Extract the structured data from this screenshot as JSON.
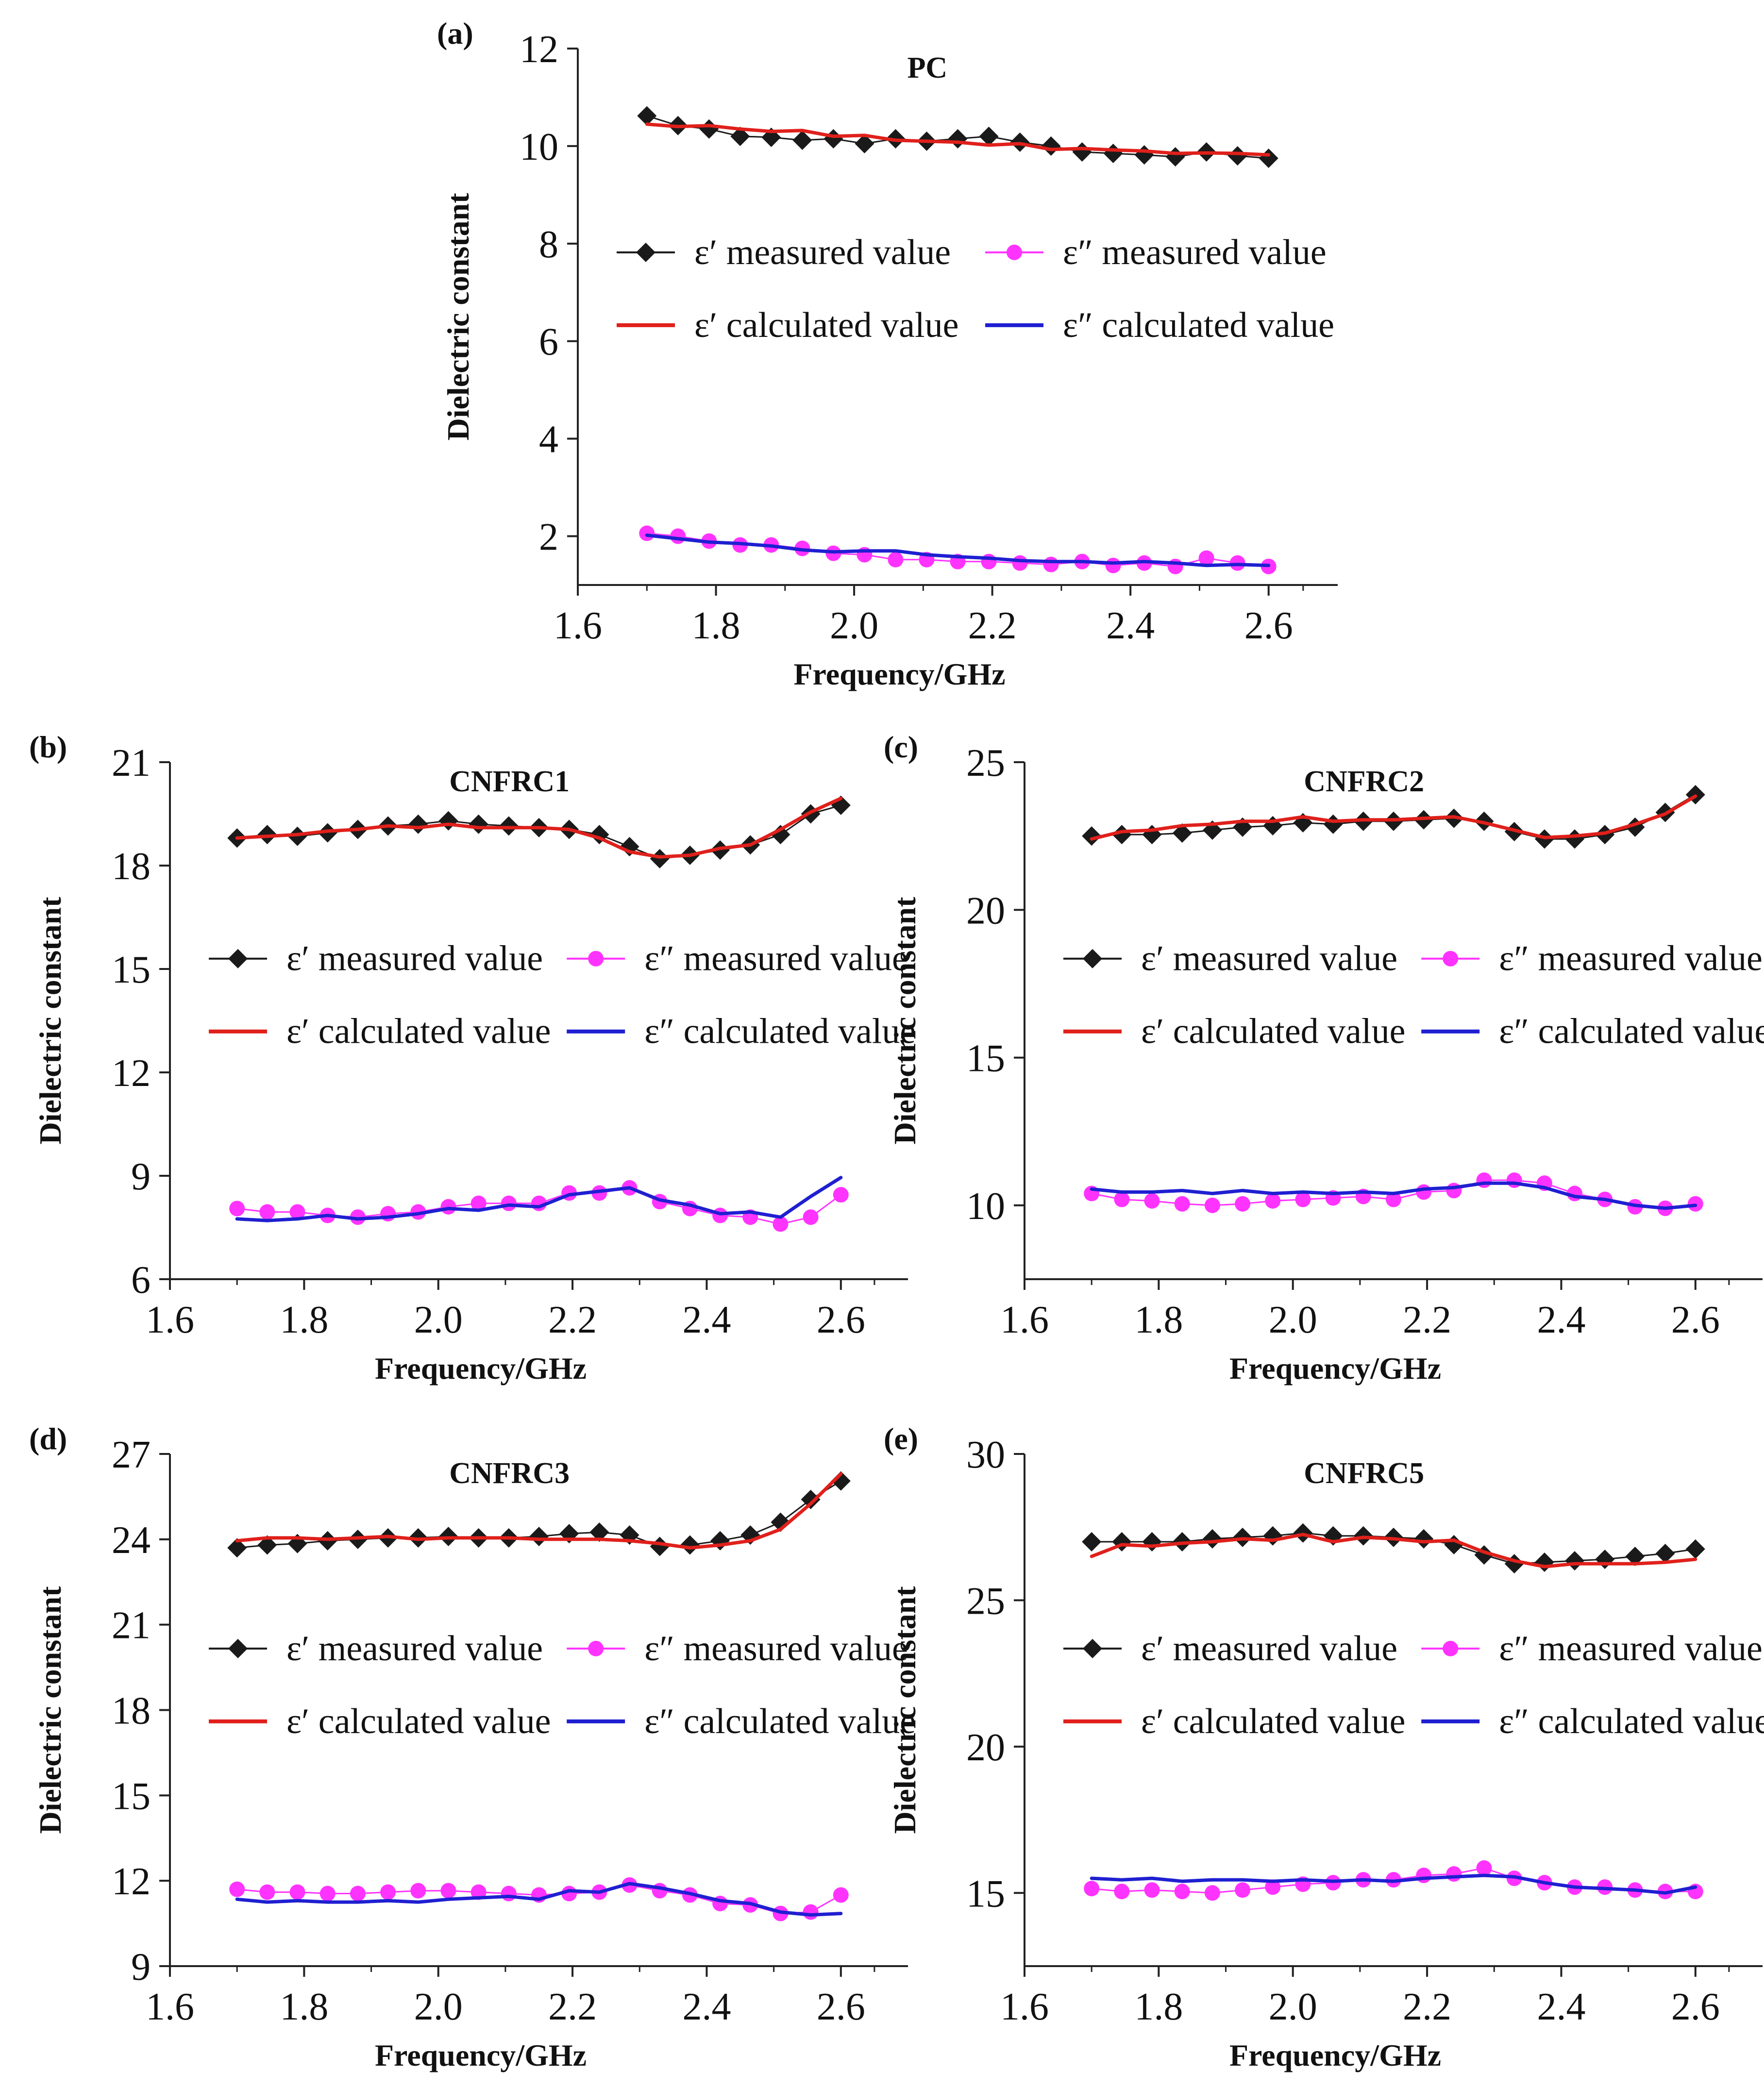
{
  "figure": {
    "series_styles": [
      {
        "key": "eps1_meas",
        "color": "#1a1a1a",
        "marker": "diamond"
      },
      {
        "key": "eps1_calc",
        "color": "#e0201b",
        "marker": "none"
      },
      {
        "key": "eps2_meas",
        "color": "#ff33ff",
        "marker": "circle"
      },
      {
        "key": "eps2_calc",
        "color": "#1f1fd1",
        "marker": "none"
      }
    ]
  },
  "chart_data": [
    {
      "type": "line",
      "panel_label": "(a)",
      "title": "PC",
      "xlabel": "Frequency/GHz",
      "ylabel": "Dielectric constant",
      "xlim": [
        1.6,
        2.7
      ],
      "ylim": [
        1,
        12
      ],
      "xticks": [
        "1.6",
        "1.8",
        "2.0",
        "2.2",
        "2.4",
        "2.6"
      ],
      "yticks": [
        "2",
        "4",
        "6",
        "8",
        "10",
        "12"
      ],
      "legend": {
        "eps1_meas": "ε′ measured value",
        "eps2_meas": "ε″ measured value",
        "eps1_calc": "ε′ calculated value",
        "eps2_calc": "ε″ calculated value"
      },
      "x": [
        1.7,
        1.745,
        1.79,
        1.835,
        1.88,
        1.925,
        1.97,
        2.015,
        2.06,
        2.105,
        2.15,
        2.195,
        2.24,
        2.285,
        2.33,
        2.375,
        2.42,
        2.465,
        2.51,
        2.555,
        2.6
      ],
      "series": [
        {
          "name": "ε′ measured value",
          "key": "eps1_meas",
          "values": [
            10.62,
            10.42,
            10.35,
            10.2,
            10.18,
            10.12,
            10.15,
            10.05,
            10.15,
            10.1,
            10.15,
            10.2,
            10.08,
            10.0,
            9.88,
            9.85,
            9.82,
            9.78,
            9.88,
            9.8,
            9.75
          ]
        },
        {
          "name": "ε′ calculated value",
          "key": "eps1_calc",
          "values": [
            10.45,
            10.4,
            10.42,
            10.35,
            10.3,
            10.32,
            10.2,
            10.22,
            10.12,
            10.1,
            10.08,
            10.02,
            10.05,
            9.93,
            9.95,
            9.92,
            9.9,
            9.85,
            9.86,
            9.85,
            9.82
          ]
        },
        {
          "name": "ε″ measured value",
          "key": "eps2_meas",
          "values": [
            2.06,
            2.0,
            1.9,
            1.82,
            1.82,
            1.75,
            1.65,
            1.62,
            1.52,
            1.52,
            1.48,
            1.48,
            1.45,
            1.42,
            1.48,
            1.4,
            1.45,
            1.38,
            1.55,
            1.45,
            1.38
          ]
        },
        {
          "name": "ε″ calculated value",
          "key": "eps2_calc",
          "values": [
            2.02,
            1.95,
            1.88,
            1.85,
            1.8,
            1.72,
            1.68,
            1.7,
            1.7,
            1.62,
            1.58,
            1.55,
            1.5,
            1.48,
            1.48,
            1.45,
            1.48,
            1.45,
            1.4,
            1.42,
            1.4
          ]
        }
      ]
    },
    {
      "type": "line",
      "panel_label": "(b)",
      "title": "CNFRC1",
      "xlabel": "Frequency/GHz",
      "ylabel": "Dielectric constant",
      "xlim": [
        1.6,
        2.7
      ],
      "ylim": [
        6,
        21
      ],
      "xticks": [
        "1.6",
        "1.8",
        "2.0",
        "2.2",
        "2.4",
        "2.6"
      ],
      "yticks": [
        "6",
        "9",
        "12",
        "15",
        "18",
        "21"
      ],
      "legend": {
        "eps1_meas": "ε′ measured value",
        "eps2_meas": "ε″ measured value",
        "eps1_calc": "ε′ calculated value",
        "eps2_calc": "ε″ calculated value"
      },
      "x": [
        1.7,
        1.745,
        1.79,
        1.835,
        1.88,
        1.925,
        1.97,
        2.015,
        2.06,
        2.105,
        2.15,
        2.195,
        2.24,
        2.285,
        2.33,
        2.375,
        2.42,
        2.465,
        2.51,
        2.555,
        2.6
      ],
      "series": [
        {
          "name": "ε′ measured value",
          "key": "eps1_meas",
          "values": [
            18.8,
            18.9,
            18.85,
            18.95,
            19.05,
            19.15,
            19.2,
            19.3,
            19.2,
            19.15,
            19.1,
            19.05,
            18.9,
            18.55,
            18.2,
            18.3,
            18.45,
            18.6,
            18.9,
            19.5,
            19.75
          ]
        },
        {
          "name": "ε′ calculated value",
          "key": "eps1_calc",
          "values": [
            18.8,
            18.85,
            18.9,
            19.0,
            19.05,
            19.15,
            19.1,
            19.2,
            19.1,
            19.1,
            19.1,
            19.05,
            18.8,
            18.4,
            18.25,
            18.3,
            18.5,
            18.6,
            19.05,
            19.55,
            19.95
          ]
        },
        {
          "name": "ε″ measured value",
          "key": "eps2_meas",
          "values": [
            8.05,
            7.95,
            7.95,
            7.85,
            7.8,
            7.9,
            7.95,
            8.1,
            8.2,
            8.2,
            8.2,
            8.5,
            8.5,
            8.65,
            8.25,
            8.05,
            7.85,
            7.8,
            7.6,
            7.8,
            8.45
          ]
        },
        {
          "name": "ε″ calculated value",
          "key": "eps2_calc",
          "values": [
            7.75,
            7.7,
            7.75,
            7.85,
            7.75,
            7.8,
            7.9,
            8.05,
            8.0,
            8.15,
            8.1,
            8.45,
            8.55,
            8.65,
            8.3,
            8.15,
            7.9,
            7.95,
            7.8,
            8.4,
            8.95
          ]
        }
      ]
    },
    {
      "type": "line",
      "panel_label": "(c)",
      "title": "CNFRC2",
      "xlabel": "Frequency/GHz",
      "ylabel": "Dielectric constant",
      "xlim": [
        1.6,
        2.7
      ],
      "ylim": [
        7.5,
        25
      ],
      "xticks": [
        "1.6",
        "1.8",
        "2.0",
        "2.2",
        "2.4",
        "2.6"
      ],
      "yticks": [
        "10",
        "15",
        "20",
        "25"
      ],
      "legend": {
        "eps1_meas": "ε′ measured value",
        "eps2_meas": "ε″ measured value",
        "eps1_calc": "ε′ calculated value",
        "eps2_calc": "ε″ calculated value"
      },
      "x": [
        1.7,
        1.745,
        1.79,
        1.835,
        1.88,
        1.925,
        1.97,
        2.015,
        2.06,
        2.105,
        2.15,
        2.195,
        2.24,
        2.285,
        2.33,
        2.375,
        2.42,
        2.465,
        2.51,
        2.555,
        2.6
      ],
      "series": [
        {
          "name": "ε′ measured value",
          "key": "eps1_meas",
          "values": [
            22.5,
            22.55,
            22.55,
            22.6,
            22.7,
            22.8,
            22.85,
            22.95,
            22.9,
            23.0,
            23.0,
            23.05,
            23.1,
            23.0,
            22.65,
            22.4,
            22.4,
            22.55,
            22.8,
            23.3,
            23.9
          ]
        },
        {
          "name": "ε′ calculated value",
          "key": "eps1_calc",
          "values": [
            22.4,
            22.65,
            22.7,
            22.85,
            22.9,
            23.0,
            23.0,
            23.15,
            23.0,
            23.05,
            23.05,
            23.1,
            23.15,
            22.95,
            22.7,
            22.45,
            22.5,
            22.6,
            22.9,
            23.25,
            23.85
          ]
        },
        {
          "name": "ε″ measured value",
          "key": "eps2_meas",
          "values": [
            10.4,
            10.2,
            10.15,
            10.05,
            10.0,
            10.05,
            10.15,
            10.2,
            10.25,
            10.3,
            10.2,
            10.45,
            10.5,
            10.85,
            10.85,
            10.75,
            10.4,
            10.2,
            9.95,
            9.9,
            10.05
          ]
        },
        {
          "name": "ε″ calculated value",
          "key": "eps2_calc",
          "values": [
            10.55,
            10.45,
            10.45,
            10.5,
            10.4,
            10.5,
            10.4,
            10.45,
            10.4,
            10.45,
            10.4,
            10.55,
            10.6,
            10.75,
            10.75,
            10.6,
            10.3,
            10.2,
            10.0,
            9.9,
            10.0
          ]
        }
      ]
    },
    {
      "type": "line",
      "panel_label": "(d)",
      "title": "CNFRC3",
      "xlabel": "Frequency/GHz",
      "ylabel": "Dielectric constant",
      "xlim": [
        1.6,
        2.7
      ],
      "ylim": [
        9,
        27
      ],
      "xticks": [
        "1.6",
        "1.8",
        "2.0",
        "2.2",
        "2.4",
        "2.6"
      ],
      "yticks": [
        "9",
        "12",
        "15",
        "18",
        "21",
        "24",
        "27"
      ],
      "legend": {
        "eps1_meas": "ε′ measured value",
        "eps2_meas": "ε″ measured value",
        "eps1_calc": "ε′ calculated value",
        "eps2_calc": "ε″ calculated value"
      },
      "x": [
        1.7,
        1.745,
        1.79,
        1.835,
        1.88,
        1.925,
        1.97,
        2.015,
        2.06,
        2.105,
        2.15,
        2.195,
        2.24,
        2.285,
        2.33,
        2.375,
        2.42,
        2.465,
        2.51,
        2.555,
        2.6
      ],
      "series": [
        {
          "name": "ε′ measured value",
          "key": "eps1_meas",
          "values": [
            23.7,
            23.8,
            23.85,
            23.95,
            24.0,
            24.05,
            24.05,
            24.1,
            24.05,
            24.05,
            24.1,
            24.2,
            24.25,
            24.15,
            23.75,
            23.8,
            23.95,
            24.15,
            24.6,
            25.4,
            26.05
          ]
        },
        {
          "name": "ε′ calculated value",
          "key": "eps1_calc",
          "values": [
            23.95,
            24.05,
            24.05,
            24.0,
            24.05,
            24.1,
            24.0,
            24.05,
            24.05,
            24.05,
            24.0,
            24.0,
            24.0,
            23.95,
            23.85,
            23.7,
            23.8,
            23.95,
            24.35,
            25.25,
            26.3
          ]
        },
        {
          "name": "ε″ measured value",
          "key": "eps2_meas",
          "values": [
            11.7,
            11.6,
            11.6,
            11.55,
            11.55,
            11.6,
            11.65,
            11.65,
            11.6,
            11.55,
            11.5,
            11.55,
            11.6,
            11.85,
            11.65,
            11.5,
            11.2,
            11.15,
            10.85,
            10.9,
            11.5
          ]
        },
        {
          "name": "ε″ calculated value",
          "key": "eps2_calc",
          "values": [
            11.35,
            11.25,
            11.3,
            11.25,
            11.25,
            11.3,
            11.25,
            11.35,
            11.4,
            11.45,
            11.35,
            11.65,
            11.6,
            11.9,
            11.75,
            11.55,
            11.3,
            11.2,
            10.9,
            10.8,
            10.85
          ]
        }
      ]
    },
    {
      "type": "line",
      "panel_label": "(e)",
      "title": "CNFRC5",
      "xlabel": "Frequency/GHz",
      "ylabel": "Dielectric constant",
      "xlim": [
        1.6,
        2.7
      ],
      "ylim": [
        12.5,
        30
      ],
      "xticks": [
        "1.6",
        "1.8",
        "2.0",
        "2.2",
        "2.4",
        "2.6"
      ],
      "yticks": [
        "15",
        "20",
        "25",
        "30"
      ],
      "legend": {
        "eps1_meas": "ε′ measured value",
        "eps2_meas": "ε″ measured value",
        "eps1_calc": "ε′ calculated value",
        "eps2_calc": "ε″ calculated value"
      },
      "x": [
        1.7,
        1.745,
        1.79,
        1.835,
        1.88,
        1.925,
        1.97,
        2.015,
        2.06,
        2.105,
        2.15,
        2.195,
        2.24,
        2.285,
        2.33,
        2.375,
        2.42,
        2.465,
        2.51,
        2.555,
        2.6
      ],
      "series": [
        {
          "name": "ε′ measured value",
          "key": "eps1_meas",
          "values": [
            27.0,
            27.0,
            27.0,
            27.0,
            27.1,
            27.15,
            27.2,
            27.3,
            27.2,
            27.2,
            27.15,
            27.1,
            26.9,
            26.55,
            26.25,
            26.3,
            26.35,
            26.4,
            26.5,
            26.6,
            26.75
          ]
        },
        {
          "name": "ε′ calculated value",
          "key": "eps1_calc",
          "values": [
            26.5,
            26.9,
            26.85,
            26.95,
            27.0,
            27.1,
            27.05,
            27.25,
            27.0,
            27.15,
            27.1,
            27.0,
            27.05,
            26.65,
            26.35,
            26.15,
            26.25,
            26.25,
            26.25,
            26.3,
            26.4
          ]
        },
        {
          "name": "ε″ measured value",
          "key": "eps2_meas",
          "values": [
            15.15,
            15.05,
            15.1,
            15.05,
            15.0,
            15.1,
            15.2,
            15.3,
            15.35,
            15.45,
            15.45,
            15.6,
            15.65,
            15.85,
            15.5,
            15.35,
            15.2,
            15.2,
            15.1,
            15.05,
            15.05
          ]
        },
        {
          "name": "ε″ calculated value",
          "key": "eps2_calc",
          "values": [
            15.5,
            15.45,
            15.5,
            15.4,
            15.45,
            15.45,
            15.4,
            15.45,
            15.4,
            15.45,
            15.4,
            15.5,
            15.55,
            15.6,
            15.55,
            15.35,
            15.2,
            15.15,
            15.1,
            15.0,
            15.2
          ]
        }
      ]
    }
  ]
}
